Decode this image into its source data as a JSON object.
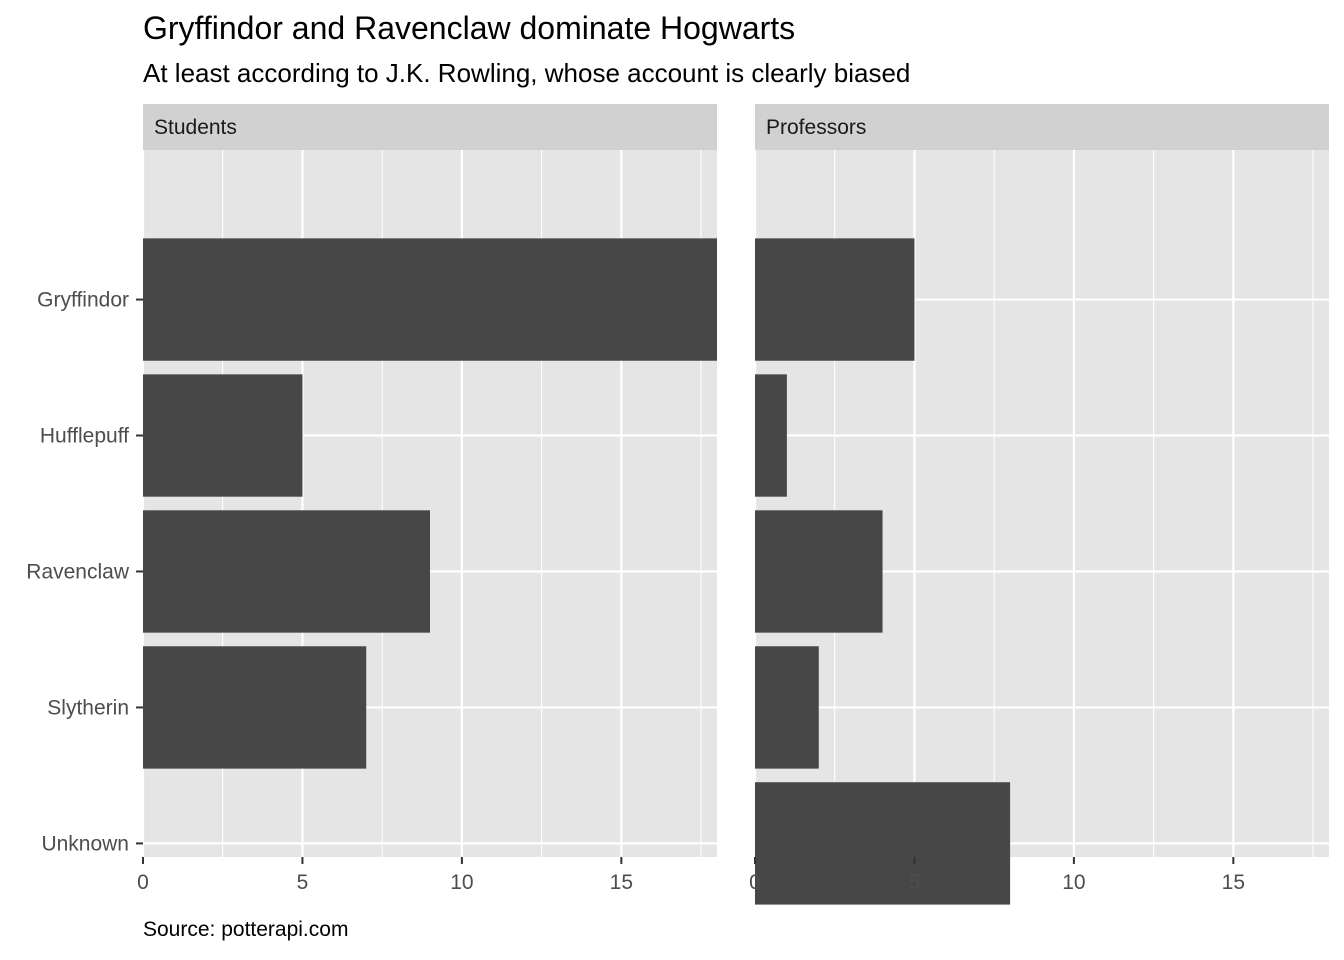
{
  "chart_data": {
    "type": "bar",
    "orientation": "horizontal",
    "title": "Gryffindor and Ravenclaw dominate Hogwarts",
    "subtitle": "At least according to J.K. Rowling, whose account is clearly biased",
    "caption": "Source: potterapi.com",
    "categories": [
      "Gryffindor",
      "Hufflepuff",
      "Ravenclaw",
      "Slytherin",
      "Unknown"
    ],
    "xlim": [
      0,
      18
    ],
    "x_ticks": [
      0,
      5,
      10,
      15
    ],
    "grid": true,
    "colors": {
      "bar": "#474747",
      "panel": "#e5e5e5",
      "strip": "#d1d1d1",
      "grid": "#ffffff"
    },
    "facets": [
      {
        "name": "Students",
        "values": [
          18,
          5,
          9,
          7,
          0
        ]
      },
      {
        "name": "Professors",
        "values": [
          5,
          1,
          4,
          2,
          8
        ]
      }
    ]
  }
}
